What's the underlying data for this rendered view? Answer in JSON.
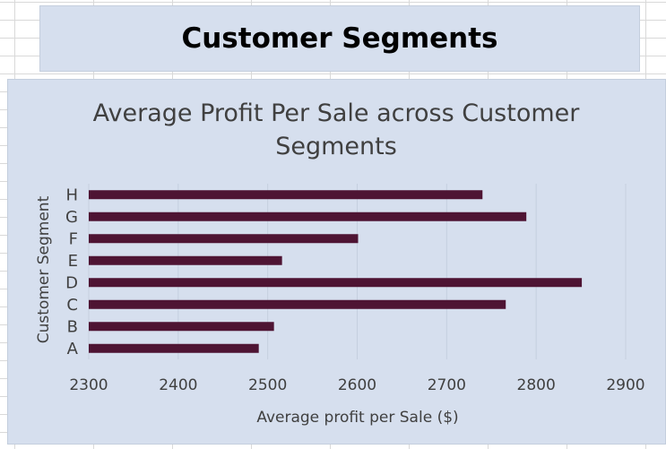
{
  "header": {
    "title": "Customer Segments"
  },
  "chart_data": {
    "type": "bar",
    "orientation": "horizontal",
    "title_lines": [
      "Average Profit Per Sale across Customer",
      "Segments"
    ],
    "xlabel": "Average profit per Sale ($)",
    "ylabel": "Customer Segment",
    "categories": [
      "A",
      "B",
      "C",
      "D",
      "E",
      "F",
      "G",
      "H"
    ],
    "values": [
      2490,
      2507,
      2766,
      2851,
      2516,
      2601,
      2789,
      2740
    ],
    "xlim": [
      2300,
      2900
    ],
    "xticks": [
      2300,
      2400,
      2500,
      2600,
      2700,
      2800,
      2900
    ],
    "grid": "vertical",
    "legend": "none",
    "bar_color": "#4e1433",
    "grid_color": "#c5cfdf"
  }
}
